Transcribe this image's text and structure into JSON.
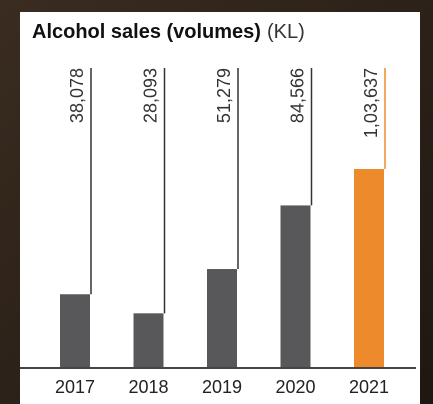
{
  "chart_data": {
    "type": "bar",
    "title": "Alcohol sales (volumes)",
    "unit_label": "(KL)",
    "categories": [
      "2017",
      "2018",
      "2019",
      "2020",
      "2021"
    ],
    "values": [
      38078,
      28093,
      51279,
      84566,
      103637
    ],
    "value_labels": [
      "38,078",
      "28,093",
      "51,279",
      "84,566",
      "1,03,637"
    ],
    "colors": [
      "#58585a",
      "#58585a",
      "#58585a",
      "#58585a",
      "#ec8a2c"
    ]
  }
}
